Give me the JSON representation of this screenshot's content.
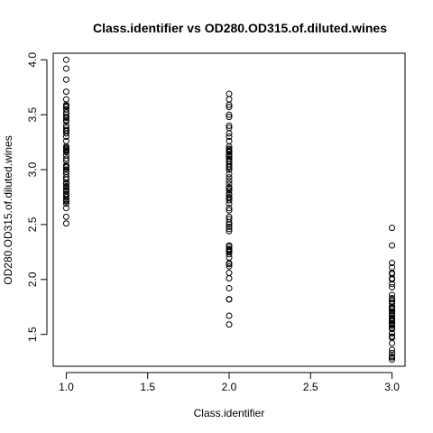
{
  "chart_data": {
    "type": "scatter",
    "title": "Class.identifier vs OD280.OD315.of.diluted.wines",
    "xlabel": "Class.identifier",
    "ylabel": "OD280.OD315.of.diluted.wines",
    "xlim": [
      0.92,
      3.08
    ],
    "ylim": [
      1.21,
      4.06
    ],
    "x_ticks": [
      {
        "value": 1.0,
        "label": "1.0"
      },
      {
        "value": 1.5,
        "label": "1.5"
      },
      {
        "value": 2.0,
        "label": "2.0"
      },
      {
        "value": 2.5,
        "label": "2.5"
      },
      {
        "value": 3.0,
        "label": "3.0"
      }
    ],
    "y_ticks": [
      {
        "value": 1.5,
        "label": "1.5"
      },
      {
        "value": 2.0,
        "label": "2.0"
      },
      {
        "value": 2.5,
        "label": "2.5"
      },
      {
        "value": 3.0,
        "label": "3.0"
      },
      {
        "value": 3.5,
        "label": "3.5"
      },
      {
        "value": 4.0,
        "label": "4.0"
      }
    ],
    "grid": false,
    "legend": "none",
    "series": [
      {
        "x": [
          1,
          1,
          1,
          1,
          1,
          1,
          1,
          1,
          1,
          1,
          1,
          1,
          1,
          1,
          1,
          1,
          1,
          1,
          1,
          1,
          1,
          1,
          1,
          1,
          1,
          1,
          1,
          1,
          1,
          1,
          1,
          1,
          1,
          1,
          1,
          1,
          1,
          1,
          1,
          1,
          1,
          1,
          1,
          1,
          1,
          1,
          1,
          1,
          1,
          1,
          1,
          1,
          1,
          1,
          1,
          1,
          1,
          1,
          1
        ],
        "y": [
          4.0,
          3.92,
          3.82,
          3.71,
          3.64,
          3.59,
          3.58,
          3.57,
          3.55,
          3.52,
          3.5,
          3.48,
          3.47,
          3.45,
          3.44,
          3.4,
          3.38,
          3.36,
          3.33,
          3.3,
          3.26,
          3.21,
          3.2,
          3.19,
          3.18,
          3.17,
          3.16,
          3.13,
          3.1,
          3.08,
          3.04,
          3.02,
          3.0,
          3.0,
          2.98,
          2.96,
          2.93,
          2.91,
          2.88,
          2.87,
          2.85,
          2.84,
          2.82,
          2.81,
          2.8,
          2.78,
          2.77,
          2.75,
          2.73,
          2.72,
          2.71,
          2.69,
          2.65,
          2.57,
          2.51,
          3.58,
          3.35,
          3.03,
          2.88
        ]
      },
      {
        "x": [
          2,
          2,
          2,
          2,
          2,
          2,
          2,
          2,
          2,
          2,
          2,
          2,
          2,
          2,
          2,
          2,
          2,
          2,
          2,
          2,
          2,
          2,
          2,
          2,
          2,
          2,
          2,
          2,
          2,
          2,
          2,
          2,
          2,
          2,
          2,
          2,
          2,
          2,
          2,
          2,
          2,
          2,
          2,
          2,
          2,
          2,
          2,
          2,
          2,
          2,
          2,
          2,
          2,
          2,
          2,
          2,
          2,
          2,
          2,
          2,
          2,
          2,
          2,
          2,
          2,
          2,
          2,
          2,
          2,
          2,
          2
        ],
        "y": [
          3.69,
          3.64,
          3.59,
          3.57,
          3.5,
          3.48,
          3.4,
          3.38,
          3.33,
          3.3,
          3.26,
          3.21,
          3.19,
          3.17,
          3.16,
          3.14,
          3.13,
          3.12,
          3.1,
          3.08,
          3.07,
          3.05,
          3.03,
          3.02,
          3.0,
          2.96,
          2.93,
          2.9,
          2.87,
          2.84,
          2.83,
          2.81,
          2.78,
          2.77,
          2.75,
          2.72,
          2.69,
          2.65,
          2.63,
          2.57,
          2.52,
          2.5,
          2.48,
          2.46,
          2.44,
          2.31,
          2.3,
          2.28,
          2.26,
          2.23,
          2.2,
          2.15,
          2.12,
          2.06,
          2.01,
          1.92,
          1.82,
          1.82,
          1.67,
          1.59,
          3.18,
          3.14,
          3.0,
          2.83,
          2.74,
          2.55,
          2.27,
          2.25,
          2.14,
          1.82,
          3.12
        ]
      },
      {
        "x": [
          3,
          3,
          3,
          3,
          3,
          3,
          3,
          3,
          3,
          3,
          3,
          3,
          3,
          3,
          3,
          3,
          3,
          3,
          3,
          3,
          3,
          3,
          3,
          3,
          3,
          3,
          3,
          3,
          3,
          3,
          3,
          3,
          3,
          3,
          3,
          3,
          3,
          3,
          3,
          3,
          3,
          3,
          3,
          3,
          3,
          3,
          3,
          3
        ],
        "y": [
          2.47,
          2.31,
          2.15,
          2.11,
          2.06,
          2.05,
          2.01,
          2.0,
          1.96,
          1.93,
          1.86,
          1.83,
          1.82,
          1.8,
          1.78,
          1.75,
          1.74,
          1.73,
          1.71,
          1.69,
          1.68,
          1.67,
          1.64,
          1.63,
          1.62,
          1.6,
          1.59,
          1.58,
          1.56,
          1.55,
          1.51,
          1.48,
          1.47,
          1.42,
          1.36,
          1.33,
          1.33,
          1.3,
          1.29,
          1.27,
          1.75,
          1.74,
          1.65,
          1.62,
          1.6,
          1.56,
          1.51,
          1.48
        ]
      }
    ]
  }
}
